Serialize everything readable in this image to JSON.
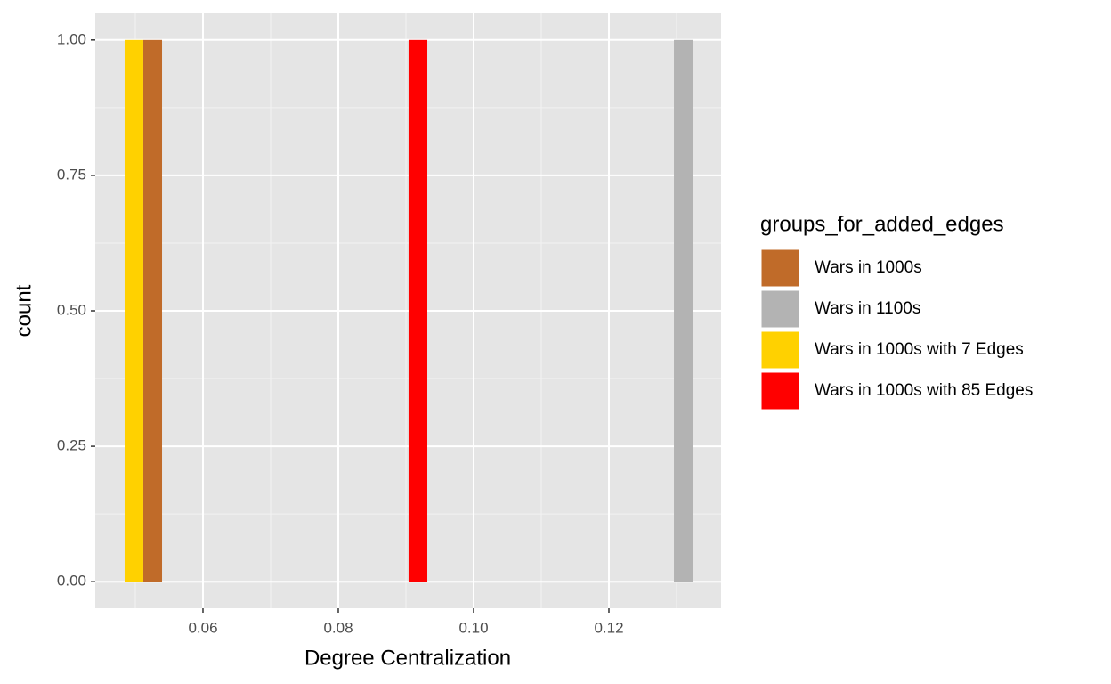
{
  "chart_data": {
    "type": "histogram",
    "x_label": "Degree Centralization",
    "y_label": "count",
    "legend_title": "groups_for_added_edges",
    "legend_position": "right",
    "grid": true,
    "xlim": [
      0.04408,
      0.13658
    ],
    "ylim": [
      -0.049,
      1.049
    ],
    "xticks": [
      0.06,
      0.08,
      {
        "value": 0.1,
        "label": "0.10"
      },
      0.12
    ],
    "yticks": [
      {
        "value": 0,
        "label": "0.00"
      },
      {
        "value": 0.25,
        "label": "0.25"
      },
      {
        "value": 0.5,
        "label": "0.50"
      },
      {
        "value": 0.75,
        "label": "0.75"
      },
      {
        "value": 1,
        "label": "1.00"
      }
    ],
    "series": [
      {
        "name": "Wars in 1000s",
        "color": "#c06b29",
        "bins": [
          0.05118,
          0.05395
        ],
        "values": [
          1
        ]
      },
      {
        "name": "Wars in 1100s",
        "color": "#b3b3b3",
        "bins": [
          0.12961,
          0.13237
        ],
        "values": [
          1
        ]
      },
      {
        "name": "Wars in 1000s with 7 Edges",
        "color": "#ffd100",
        "bins": [
          0.04842,
          0.05118
        ],
        "values": [
          1
        ]
      },
      {
        "name": "Wars in 1000s with 85 Edges",
        "color": "#ff0000",
        "bins": [
          0.09039,
          0.09316
        ],
        "values": [
          1
        ]
      }
    ]
  }
}
